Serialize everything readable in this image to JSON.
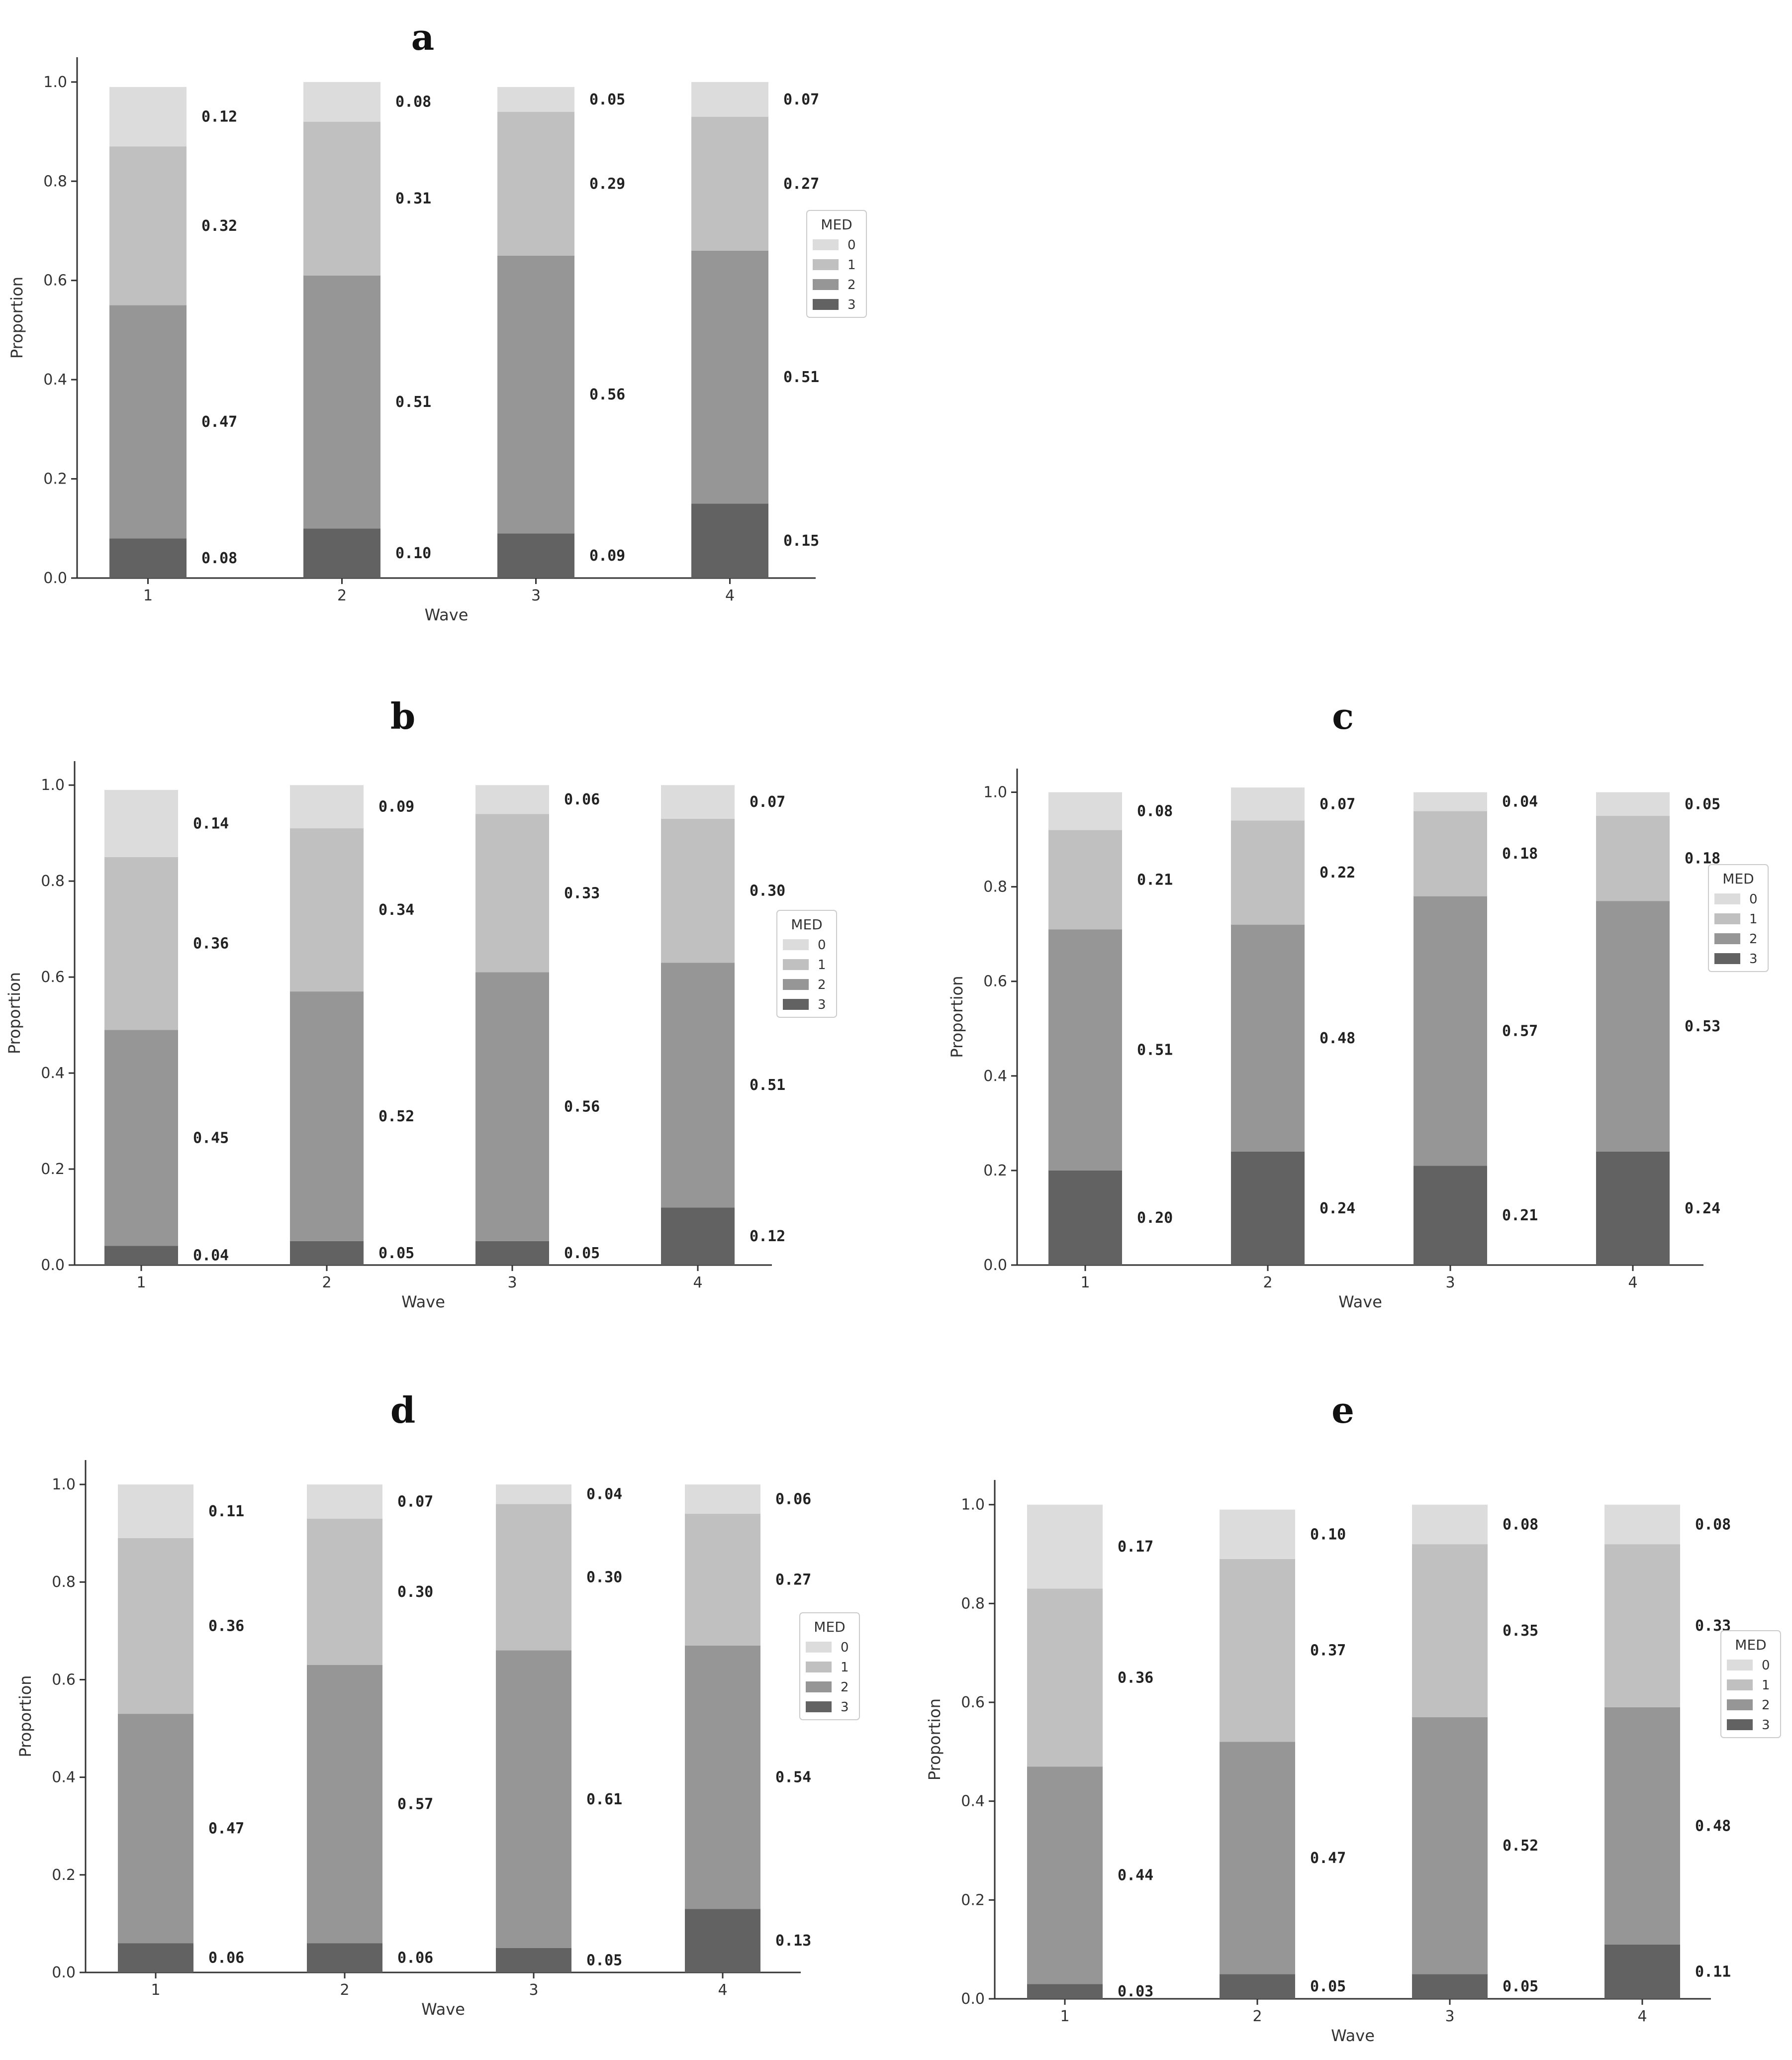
{
  "legend": {
    "title": "MED",
    "categories": [
      "0",
      "1",
      "2",
      "3"
    ]
  },
  "colors": {
    "3": "#626262",
    "2": "#969696",
    "1": "#c0c0c0",
    "0": "#dcdcdc"
  },
  "chart_data": [
    {
      "type": "bar",
      "stacked": true,
      "panel": "a",
      "title": "a",
      "xlabel": "Wave",
      "ylabel": "Proportion",
      "categories": [
        "1",
        "2",
        "3",
        "4"
      ],
      "ylim": [
        0,
        1.05
      ],
      "yticks": [
        "0.0",
        "0.2",
        "0.4",
        "0.6",
        "0.8",
        "1.0"
      ],
      "legend_position": "right",
      "series": [
        {
          "name": "3",
          "values": [
            0.08,
            0.1,
            0.09,
            0.15
          ]
        },
        {
          "name": "2",
          "values": [
            0.47,
            0.51,
            0.56,
            0.51
          ]
        },
        {
          "name": "1",
          "values": [
            0.32,
            0.31,
            0.29,
            0.27
          ]
        },
        {
          "name": "0",
          "values": [
            0.12,
            0.08,
            0.05,
            0.07
          ]
        }
      ]
    },
    {
      "type": "bar",
      "stacked": true,
      "panel": "b",
      "title": "b",
      "xlabel": "Wave",
      "ylabel": "Proportion",
      "categories": [
        "1",
        "2",
        "3",
        "4"
      ],
      "ylim": [
        0,
        1.05
      ],
      "yticks": [
        "0.0",
        "0.2",
        "0.4",
        "0.6",
        "0.8",
        "1.0"
      ],
      "legend_position": "right",
      "series": [
        {
          "name": "3",
          "values": [
            0.04,
            0.05,
            0.05,
            0.12
          ]
        },
        {
          "name": "2",
          "values": [
            0.45,
            0.52,
            0.56,
            0.51
          ]
        },
        {
          "name": "1",
          "values": [
            0.36,
            0.34,
            0.33,
            0.3
          ]
        },
        {
          "name": "0",
          "values": [
            0.14,
            0.09,
            0.06,
            0.07
          ]
        }
      ]
    },
    {
      "type": "bar",
      "stacked": true,
      "panel": "c",
      "title": "c",
      "xlabel": "Wave",
      "ylabel": "Proportion",
      "categories": [
        "1",
        "2",
        "3",
        "4"
      ],
      "ylim": [
        0,
        1.05
      ],
      "yticks": [
        "0.0",
        "0.2",
        "0.4",
        "0.6",
        "0.8",
        "1.0"
      ],
      "legend_position": "right",
      "series": [
        {
          "name": "3",
          "values": [
            0.2,
            0.24,
            0.21,
            0.24
          ]
        },
        {
          "name": "2",
          "values": [
            0.51,
            0.48,
            0.57,
            0.53
          ]
        },
        {
          "name": "1",
          "values": [
            0.21,
            0.22,
            0.18,
            0.18
          ]
        },
        {
          "name": "0",
          "values": [
            0.08,
            0.07,
            0.04,
            0.05
          ]
        }
      ]
    },
    {
      "type": "bar",
      "stacked": true,
      "panel": "d",
      "title": "d",
      "xlabel": "Wave",
      "ylabel": "Proportion",
      "categories": [
        "1",
        "2",
        "3",
        "4"
      ],
      "ylim": [
        0,
        1.05
      ],
      "yticks": [
        "0.0",
        "0.2",
        "0.4",
        "0.6",
        "0.8",
        "1.0"
      ],
      "legend_position": "right",
      "series": [
        {
          "name": "3",
          "values": [
            0.06,
            0.06,
            0.05,
            0.13
          ]
        },
        {
          "name": "2",
          "values": [
            0.47,
            0.57,
            0.61,
            0.54
          ]
        },
        {
          "name": "1",
          "values": [
            0.36,
            0.3,
            0.3,
            0.27
          ]
        },
        {
          "name": "0",
          "values": [
            0.11,
            0.07,
            0.04,
            0.06
          ]
        }
      ]
    },
    {
      "type": "bar",
      "stacked": true,
      "panel": "e",
      "title": "e",
      "xlabel": "Wave",
      "ylabel": "Proportion",
      "categories": [
        "1",
        "2",
        "3",
        "4"
      ],
      "ylim": [
        0,
        1.05
      ],
      "yticks": [
        "0.0",
        "0.2",
        "0.4",
        "0.6",
        "0.8",
        "1.0"
      ],
      "legend_position": "right",
      "series": [
        {
          "name": "3",
          "values": [
            0.03,
            0.05,
            0.05,
            0.11
          ]
        },
        {
          "name": "2",
          "values": [
            0.44,
            0.47,
            0.52,
            0.48
          ]
        },
        {
          "name": "1",
          "values": [
            0.36,
            0.37,
            0.35,
            0.33
          ]
        },
        {
          "name": "0",
          "values": [
            0.17,
            0.1,
            0.08,
            0.08
          ]
        }
      ]
    }
  ]
}
